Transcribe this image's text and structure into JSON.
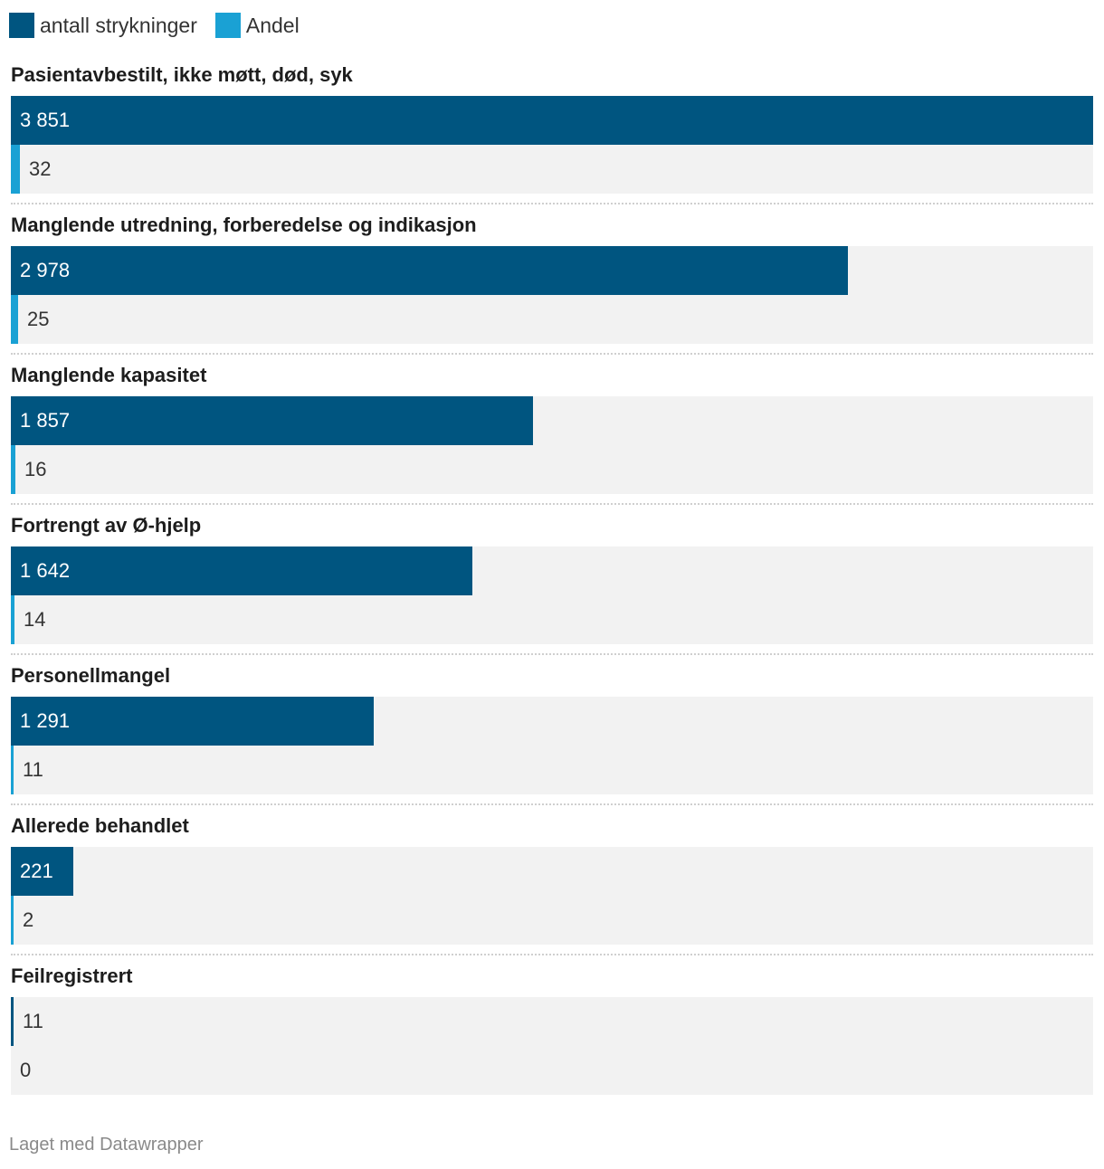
{
  "legend": [
    {
      "label": "antall strykninger",
      "color": "#005580"
    },
    {
      "label": "Andel",
      "color": "#1aa1d4"
    }
  ],
  "chart_data": {
    "type": "bar",
    "orientation": "horizontal",
    "categories": [
      "Pasientavbestilt, ikke møtt, død, syk",
      "Manglende utredning, forberedelse og indikasjon",
      "Manglende kapasitet",
      "Fortrengt av Ø-hjelp",
      "Personellmangel",
      "Allerede behandlet",
      "Feilregistrert"
    ],
    "series": [
      {
        "name": "antall strykninger",
        "color": "#005580",
        "values": [
          3851,
          2978,
          1857,
          1642,
          1291,
          221,
          11
        ],
        "labels": [
          "3 851",
          "2 978",
          "1 857",
          "1 642",
          "1 291",
          "221",
          "11"
        ]
      },
      {
        "name": "Andel",
        "color": "#1aa1d4",
        "values": [
          32,
          25,
          16,
          14,
          11,
          2,
          0
        ],
        "labels": [
          "32",
          "25",
          "16",
          "14",
          "11",
          "2",
          "0"
        ]
      }
    ],
    "xlim": [
      0,
      3851
    ],
    "grid": false,
    "legend_position": "top-left"
  },
  "footer": {
    "credit": "Laget med Datawrapper"
  }
}
